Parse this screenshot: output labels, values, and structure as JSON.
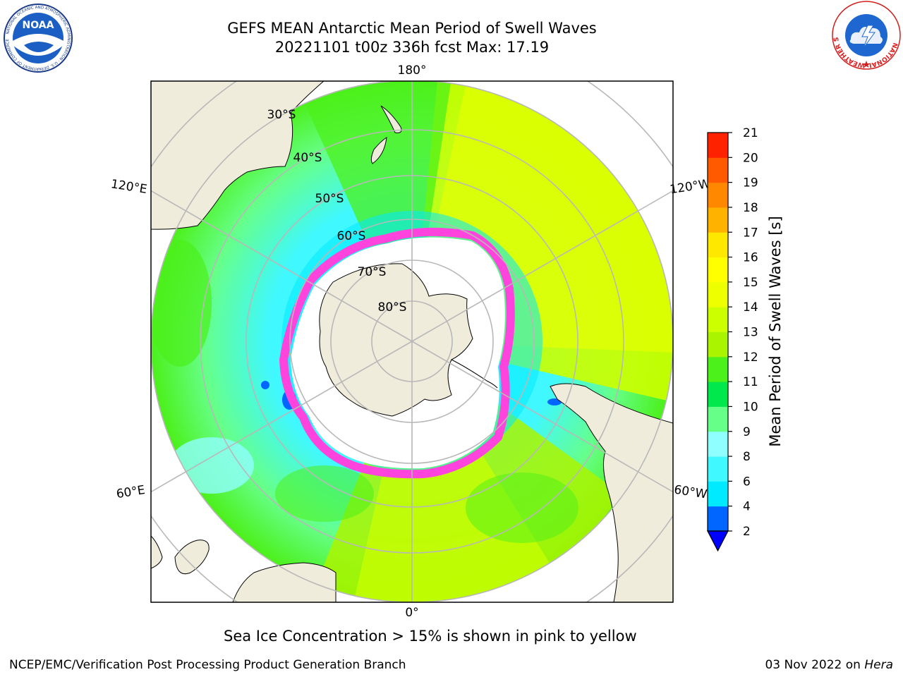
{
  "title": {
    "line1": "GEFS MEAN Antarctic Mean Period of Swell Waves",
    "line2": "20221101 t00z 336h fcst   Max: 17.19"
  },
  "map": {
    "projection": "south polar stereographic",
    "longitude_labels": {
      "top": "180°",
      "bottom": "0°",
      "left_upper": "120°E",
      "left_lower": "60°E",
      "right_upper": "120°W",
      "right_lower": "60°W"
    },
    "latitude_labels": [
      "30°S",
      "40°S",
      "50°S",
      "60°S",
      "70°S",
      "80°S"
    ],
    "colors": {
      "land": "#efecdc",
      "grid": "#b8b8b8",
      "sea_ice_edge": "#ff44dd",
      "sea_ice_yellow": "#ffb838",
      "no_data": "#ffffff"
    }
  },
  "colorbar": {
    "label": "Mean Period of Swell Waves [s]",
    "ticks": [
      "2",
      "4",
      "6",
      "8",
      "9",
      "10",
      "11",
      "12",
      "13",
      "14",
      "15",
      "16",
      "17",
      "18",
      "19",
      "20",
      "21"
    ],
    "colors": [
      "#0066ff",
      "#00eaff",
      "#40f8ff",
      "#90ffff",
      "#66ff88",
      "#00e84c",
      "#4cf01a",
      "#aaf400",
      "#ccff00",
      "#eeff00",
      "#ffff00",
      "#ffe800",
      "#ffb200",
      "#ff8800",
      "#ff5a00",
      "#ff2200"
    ],
    "under_color": "#0000ff"
  },
  "caption": "Sea Ice Concentration > 15% is shown in pink to yellow",
  "footer": {
    "left": "NCEP/EMC/Verification Post Processing Product Generation Branch",
    "date": "03 Nov 2022 on ",
    "machine": "Hera"
  },
  "logos": {
    "noaa_text": "NOAA",
    "noaa_ring": "NATIONAL OCEANIC AND ATMOSPHERIC ADMINISTRATION · U.S. DEPARTMENT OF COMMERCE",
    "nws_ring": "NATIONAL WEATHER SERVICE"
  }
}
